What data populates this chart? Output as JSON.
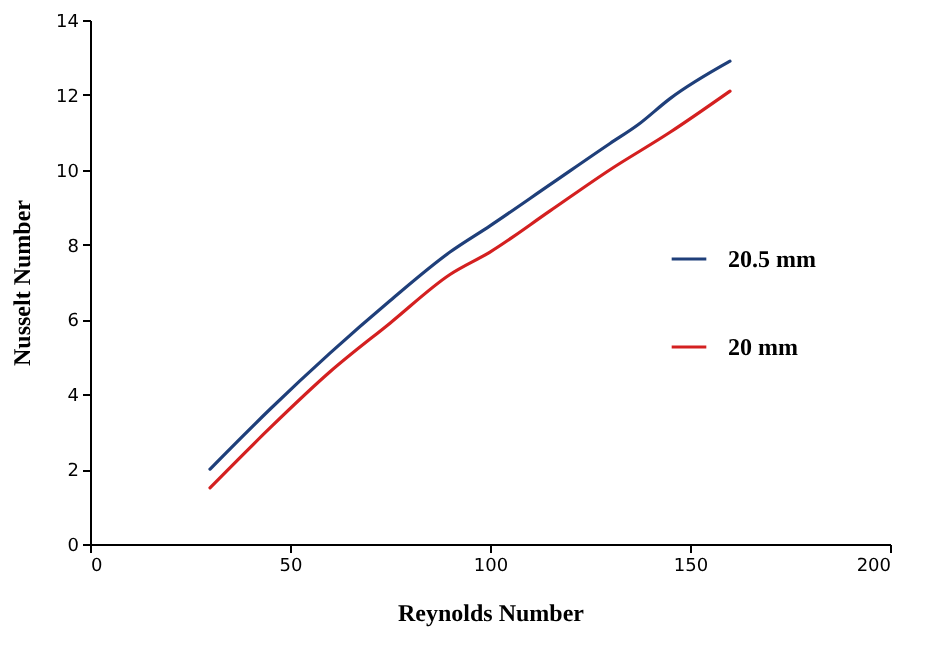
{
  "chart_data": {
    "type": "line",
    "xlabel": "Reynolds Number",
    "ylabel": "Nusselt Number",
    "series": [
      {
        "name": "20.5 mm",
        "color": "#1f3f7a",
        "x": [
          30,
          45,
          60,
          75,
          90,
          100,
          115,
          130,
          137,
          145,
          160
        ],
        "values": [
          2,
          3.6,
          5.1,
          6.5,
          7.8,
          8.5,
          9.6,
          10.7,
          11.2,
          11.9,
          12.9
        ]
      },
      {
        "name": "20 mm",
        "color": "#d42020",
        "x": [
          30,
          45,
          60,
          75,
          90,
          100,
          115,
          130,
          145,
          160
        ],
        "values": [
          1.5,
          3.1,
          4.6,
          5.9,
          7.2,
          7.8,
          8.9,
          10.0,
          11.0,
          12.1
        ]
      }
    ],
    "xlim": [
      0,
      200
    ],
    "xticks": [
      0,
      50,
      100,
      150,
      200
    ],
    "ylim": [
      0,
      14
    ],
    "yticks": [
      0,
      2,
      4,
      6,
      8,
      10,
      12,
      14
    ],
    "grid": false,
    "legend": "right"
  }
}
